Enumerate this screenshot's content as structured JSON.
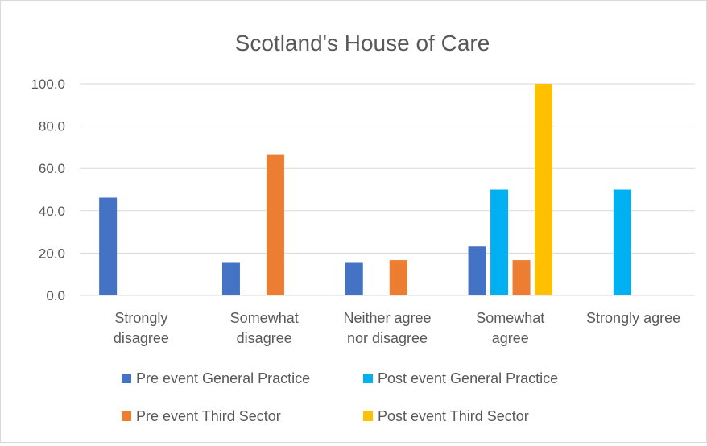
{
  "chart_data": {
    "type": "bar",
    "title": "Scotland's House of Care",
    "categories": [
      [
        "Strongly",
        "disagree"
      ],
      [
        "Somewhat",
        "disagree"
      ],
      [
        "Neither agree",
        "nor disagree"
      ],
      [
        "Somewhat",
        "agree"
      ],
      [
        "Strongly agree"
      ]
    ],
    "series": [
      {
        "name": "Pre event General Practice",
        "color": "#4472C4",
        "values": [
          46.2,
          15.4,
          15.4,
          23.1,
          0
        ]
      },
      {
        "name": "Post event General Practice",
        "color": "#00B0F0",
        "values": [
          0,
          0,
          0,
          50.0,
          50.0
        ]
      },
      {
        "name": "Pre event Third Sector",
        "color": "#ED7D31",
        "values": [
          0,
          66.7,
          16.7,
          16.7,
          0
        ]
      },
      {
        "name": "Post event Third Sector",
        "color": "#FFC000",
        "values": [
          0,
          0,
          0,
          100.0,
          0
        ]
      }
    ],
    "ylim": [
      0,
      100
    ],
    "yticks": [
      0,
      20,
      40,
      60,
      80,
      100
    ],
    "ytick_labels": [
      "0.0",
      "20.0",
      "40.0",
      "60.0",
      "80.0",
      "100.0"
    ],
    "grid": true,
    "legend": "bottom",
    "xlabel": "",
    "ylabel": ""
  }
}
